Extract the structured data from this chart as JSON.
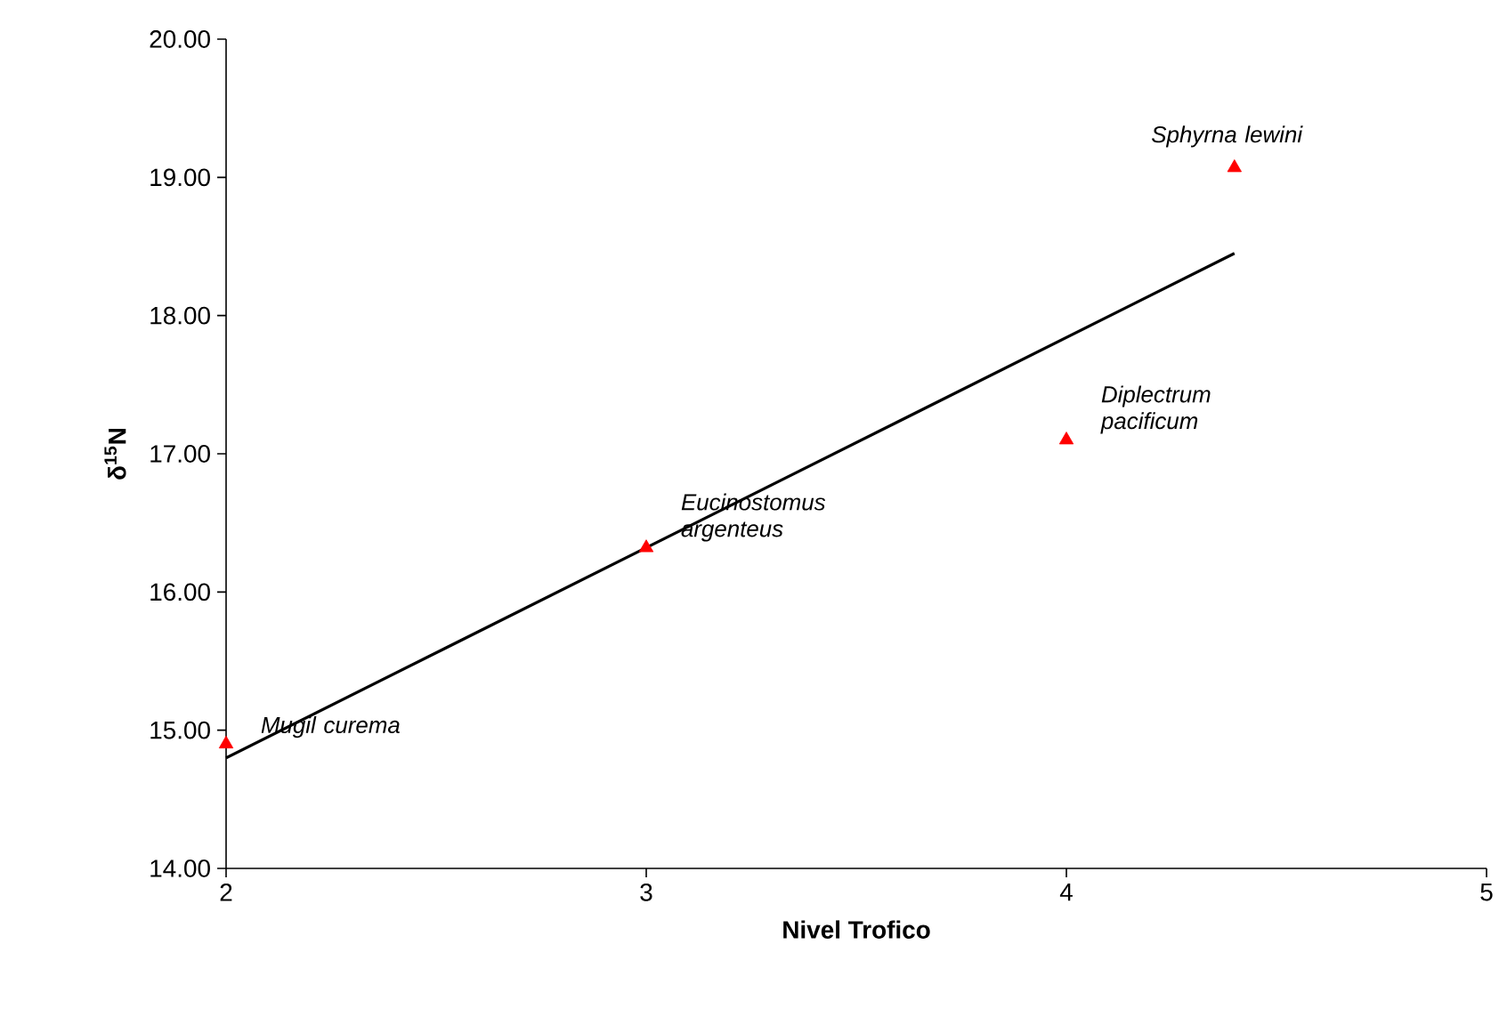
{
  "chart_data": {
    "type": "scatter",
    "xlabel": "Nivel Trofico",
    "ylabel": "δ$^{15}$N",
    "xlim": [
      2,
      5
    ],
    "xticks": [
      2,
      3,
      4,
      5
    ],
    "ylim": [
      14,
      20
    ],
    "yticks": [
      {
        "value": 14,
        "label": "14.00"
      },
      {
        "value": 15,
        "label": "15.00"
      },
      {
        "value": 16,
        "label": "16.00"
      },
      {
        "value": 17,
        "label": "17.00"
      },
      {
        "value": 18,
        "label": "18.00"
      },
      {
        "value": 19,
        "label": "19.00"
      },
      {
        "value": 20,
        "label": "20.00"
      }
    ],
    "grid": false,
    "series": [
      {
        "marker": "triangle",
        "color": "#ff0000",
        "x": [
          2,
          3,
          4,
          4.4
        ],
        "values": [
          14.9,
          16.32,
          17.1,
          19.07
        ]
      },
      {
        "type": "line",
        "marker": "none",
        "color": "#000000",
        "x": [
          2,
          4.4
        ],
        "values": [
          14.8,
          18.45
        ]
      }
    ],
    "annotations": [
      {
        "text": "Mugil curema",
        "x": 2,
        "y": 14.9
      },
      {
        "text": "Eucinostomus argenteus",
        "x": 3,
        "y": 16.32
      },
      {
        "text": "Diplectrum pacificum",
        "x": 4,
        "y": 17.1
      },
      {
        "text": "Sphyrna lewini",
        "x": 4.4,
        "y": 19.07
      }
    ]
  }
}
